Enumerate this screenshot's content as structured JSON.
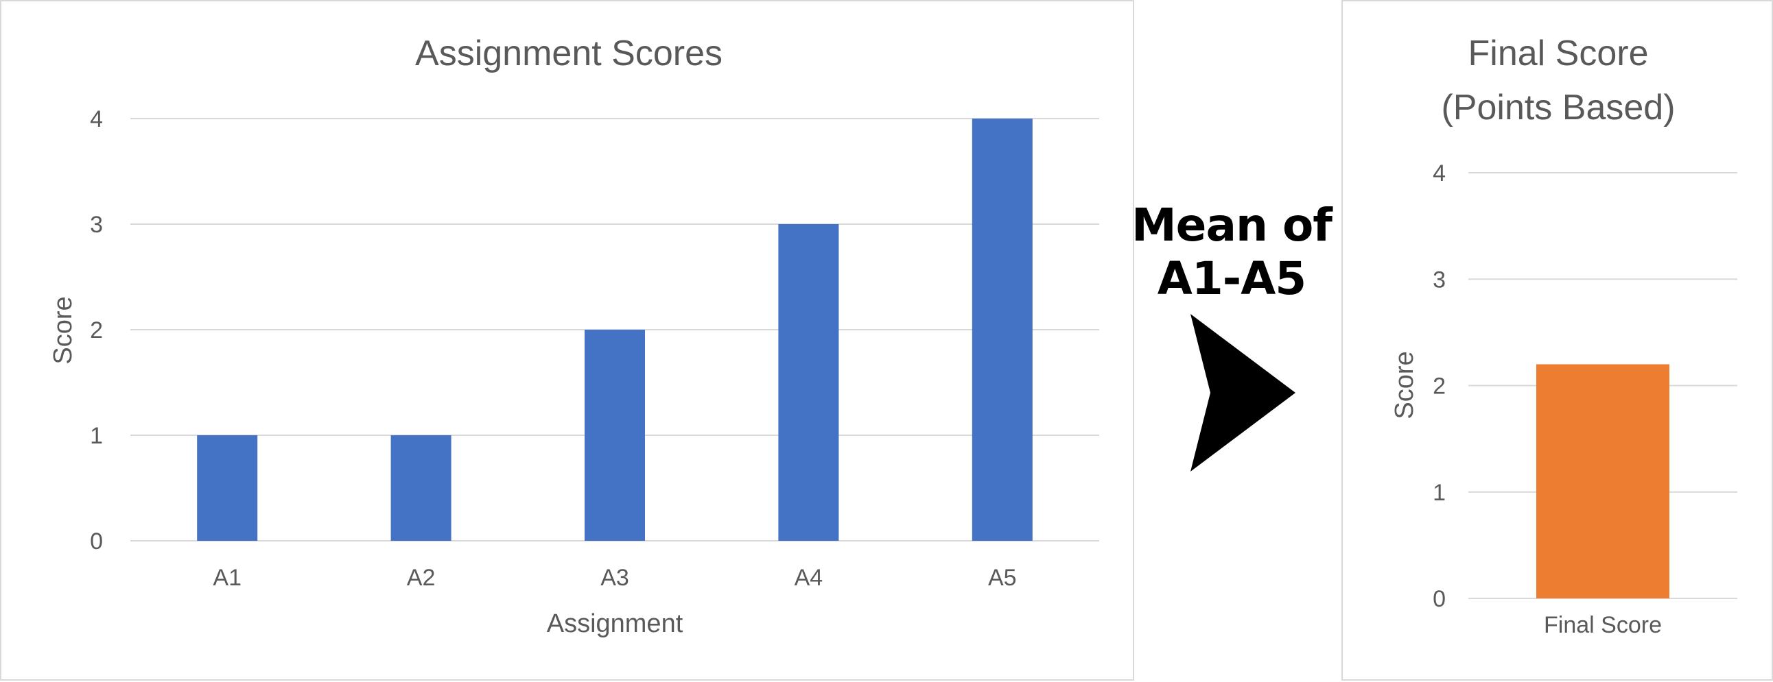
{
  "chart_data": [
    {
      "type": "bar",
      "title": "Assignment Scores",
      "xlabel": "Assignment",
      "ylabel": "Score",
      "categories": [
        "A1",
        "A2",
        "A3",
        "A4",
        "A5"
      ],
      "values": [
        1,
        1,
        2,
        3,
        4
      ],
      "ylim": [
        0,
        4
      ],
      "yticks": [
        "0",
        "1",
        "2",
        "3",
        "4"
      ],
      "color": "#4472C4",
      "grid": true
    },
    {
      "type": "bar",
      "title_lines": [
        "Final Score",
        "(Points Based)"
      ],
      "ylabel": "Score",
      "categories": [
        "Final Score"
      ],
      "values": [
        2.2
      ],
      "ylim": [
        0,
        4
      ],
      "yticks": [
        "0",
        "1",
        "2",
        "3",
        "4"
      ],
      "color": "#ED7D31",
      "grid": true
    }
  ],
  "annotation": {
    "lines": [
      "Mean of",
      "A1-A5"
    ],
    "icon": "right-arrowhead-icon",
    "color": "#000000"
  }
}
